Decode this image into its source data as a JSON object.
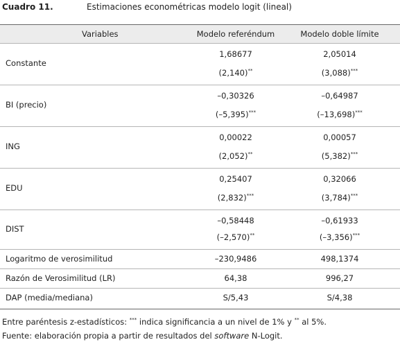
{
  "header": {
    "label": "Cuadro 11.",
    "title": "Estimaciones econométricas modelo logit (lineal)"
  },
  "table": {
    "columns": [
      "Variables",
      "Modelo referéndum",
      "Modelo doble límite"
    ],
    "coef_rows": [
      {
        "name": "Constante",
        "coef": [
          "1,68677",
          "2,05014"
        ],
        "z": [
          "(2,140)",
          "(3,088)"
        ],
        "sig": [
          "**",
          "***"
        ]
      },
      {
        "name": "BI (precio)",
        "coef": [
          "–0,30326",
          "–0,64987"
        ],
        "z": [
          "(–5,395)",
          "(–13,698)"
        ],
        "sig": [
          "***",
          "***"
        ]
      },
      {
        "name": "ING",
        "coef": [
          "0,00022",
          "0,00057"
        ],
        "z": [
          "(2,052)",
          "(5,382)"
        ],
        "sig": [
          "**",
          "***"
        ]
      },
      {
        "name": "EDU",
        "coef": [
          "0,25407",
          "0,32066"
        ],
        "z": [
          "(2,832)",
          "(3,784)"
        ],
        "sig": [
          "***",
          "***"
        ]
      },
      {
        "name": "DIST",
        "coef": [
          "–0,58448",
          "–0,61933"
        ],
        "z": [
          "(–2,570)",
          "(–3,356)"
        ],
        "sig": [
          "**",
          "***"
        ]
      }
    ],
    "stat_rows": [
      [
        "Logaritmo de verosimilitud",
        "–230,9486",
        "498,1374"
      ],
      [
        "Razón de Verosimilitud (LR)",
        "64,38",
        "996,27"
      ],
      [
        "DAP (media/mediana)",
        "S/5,43",
        "S/4,38"
      ]
    ]
  },
  "notes": {
    "line1": [
      "Entre paréntesis z-estadísticos: ",
      "***",
      " indica significancia a un nivel de 1% y ",
      "**",
      " al 5%."
    ],
    "line2": [
      "Fuente: elaboración propia a partir de resultados del ",
      "software",
      " N-Logit."
    ]
  }
}
